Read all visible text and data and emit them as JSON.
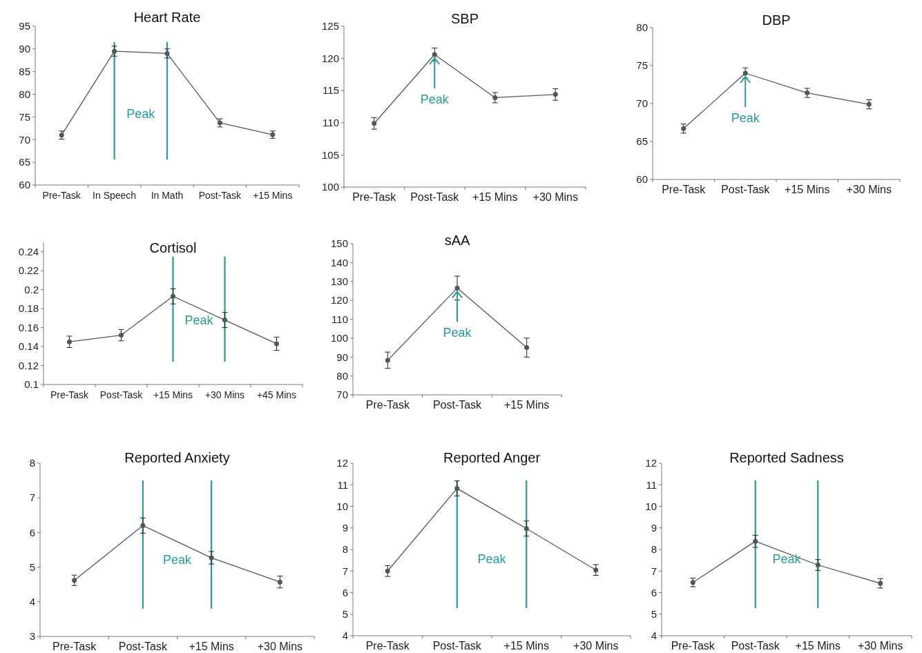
{
  "chart_data": [
    {
      "type": "line",
      "title": "Heart Rate",
      "categories": [
        "Pre-Task",
        "In Speech",
        "In Math",
        "Post-Task",
        "+15 Mins"
      ],
      "values": [
        71,
        89.5,
        89,
        73.7,
        71.1
      ],
      "errors": [
        0.9,
        1.1,
        1.0,
        0.9,
        0.8
      ],
      "color": "#555555",
      "marker": "circle",
      "ylim": [
        60,
        95
      ],
      "yticks": [
        60,
        65,
        70,
        75,
        80,
        85,
        90,
        95
      ],
      "ref_lines": [
        {
          "axis": "x",
          "value": "In Speech",
          "color": "#2a9a9a"
        },
        {
          "axis": "x",
          "value": "In Math",
          "color": "#2a9a9a"
        }
      ],
      "annotations": [
        "Peak"
      ]
    },
    {
      "type": "line",
      "title": "SBP",
      "categories": [
        "Pre-Task",
        "Post-Task",
        "+15 Mins",
        "+30 Mins"
      ],
      "values": [
        109.9,
        120.6,
        113.9,
        114.4
      ],
      "errors": [
        0.9,
        1.0,
        0.8,
        0.9
      ],
      "color": "#555555",
      "marker": "circle",
      "ylim": [
        100,
        125
      ],
      "yticks": [
        100,
        105,
        110,
        115,
        120,
        125
      ],
      "annotations": [
        {
          "text": "Peak",
          "x": "Post-Task",
          "y": 120.6
        }
      ]
    },
    {
      "type": "line",
      "title": "DBP",
      "categories": [
        "Pre-Task",
        "Post-Task",
        "+15 Mins",
        "+30 Mins"
      ],
      "values": [
        66.7,
        74.0,
        71.4,
        69.9
      ],
      "errors": [
        0.6,
        0.7,
        0.6,
        0.6
      ],
      "color": "#555555",
      "marker": "circle",
      "ylim": [
        60,
        80
      ],
      "yticks": [
        60,
        65,
        70,
        75,
        80
      ],
      "annotations": [
        {
          "text": "Peak",
          "x": "Post-Task",
          "y": 74.0
        }
      ]
    },
    {
      "type": "line",
      "title": "Cortisol",
      "categories": [
        "Pre-Task",
        "Post-Task",
        "+15 Mins",
        "+30 Mins",
        "+45 Mins"
      ],
      "values": [
        0.145,
        0.152,
        0.193,
        0.168,
        0.143
      ],
      "errors": [
        0.006,
        0.006,
        0.008,
        0.008,
        0.007
      ],
      "color": "#555555",
      "marker": "circle",
      "ylim": [
        0.1,
        0.25
      ],
      "yticks": [
        0.1,
        0.12,
        0.14,
        0.16,
        0.18,
        0.2,
        0.22,
        0.24
      ],
      "ref_lines": [
        {
          "axis": "x",
          "value": "+15 Mins",
          "color": "#2a9a9a"
        },
        {
          "axis": "x",
          "value": "+30 Mins",
          "color": "#2a9a9a"
        }
      ],
      "annotations": [
        "Peak"
      ]
    },
    {
      "type": "line",
      "title": "sAA",
      "categories": [
        "Pre-Task",
        "Post-Task",
        "+15 Mins"
      ],
      "values": [
        88.3,
        126.5,
        95
      ],
      "errors": [
        4.3,
        6.3,
        5
      ],
      "color": "#555555",
      "marker": "circle",
      "ylim": [
        70,
        150
      ],
      "yticks": [
        70,
        80,
        90,
        100,
        110,
        120,
        130,
        140,
        150
      ],
      "annotations": [
        {
          "text": "Peak",
          "x": "Post-Task",
          "y": 126.5
        }
      ]
    },
    {
      "type": "line",
      "title": "Reported Anxiety",
      "categories": [
        "Pre-Task",
        "Post-Task",
        "+15 Mins",
        "+30 Mins"
      ],
      "values": [
        4.62,
        6.2,
        5.27,
        4.57
      ],
      "errors": [
        0.15,
        0.22,
        0.18,
        0.17
      ],
      "color": "#555555",
      "marker": "circle",
      "ylim": [
        3,
        8
      ],
      "yticks": [
        3,
        4,
        5,
        6,
        7,
        8
      ],
      "ref_lines": [
        {
          "axis": "x",
          "value": "Post-Task",
          "color": "#2a9a9a"
        },
        {
          "axis": "x",
          "value": "+15 Mins",
          "color": "#2a9a9a"
        }
      ],
      "annotations": [
        "Peak"
      ]
    },
    {
      "type": "line",
      "title": "Reported Anger",
      "categories": [
        "Pre-Task",
        "Post-Task",
        "+15 Mins",
        "+30 Mins"
      ],
      "values": [
        7.0,
        10.83,
        8.97,
        7.05
      ],
      "errors": [
        0.25,
        0.35,
        0.35,
        0.25
      ],
      "color": "#555555",
      "marker": "circle",
      "ylim": [
        4,
        12
      ],
      "yticks": [
        4,
        5,
        6,
        7,
        8,
        9,
        10,
        11,
        12
      ],
      "ref_lines": [
        {
          "axis": "x",
          "value": "Post-Task",
          "color": "#2a9a9a"
        },
        {
          "axis": "x",
          "value": "+15 Mins",
          "color": "#2a9a9a"
        }
      ],
      "annotations": [
        "Peak"
      ]
    },
    {
      "type": "line",
      "title": "Reported Sadness",
      "categories": [
        "Pre-Task",
        "Post-Task",
        "+15 Mins",
        "+30 Mins"
      ],
      "values": [
        6.47,
        8.38,
        7.28,
        6.43
      ],
      "errors": [
        0.2,
        0.28,
        0.25,
        0.22
      ],
      "color": "#555555",
      "marker": "circle",
      "ylim": [
        4,
        12
      ],
      "yticks": [
        4,
        5,
        6,
        7,
        8,
        9,
        10,
        11,
        12
      ],
      "ref_lines": [
        {
          "axis": "x",
          "value": "Post-Task",
          "color": "#2a9a9a"
        },
        {
          "axis": "x",
          "value": "+15 Mins",
          "color": "#2a9a9a"
        }
      ],
      "annotations": [
        "Peak"
      ]
    }
  ]
}
